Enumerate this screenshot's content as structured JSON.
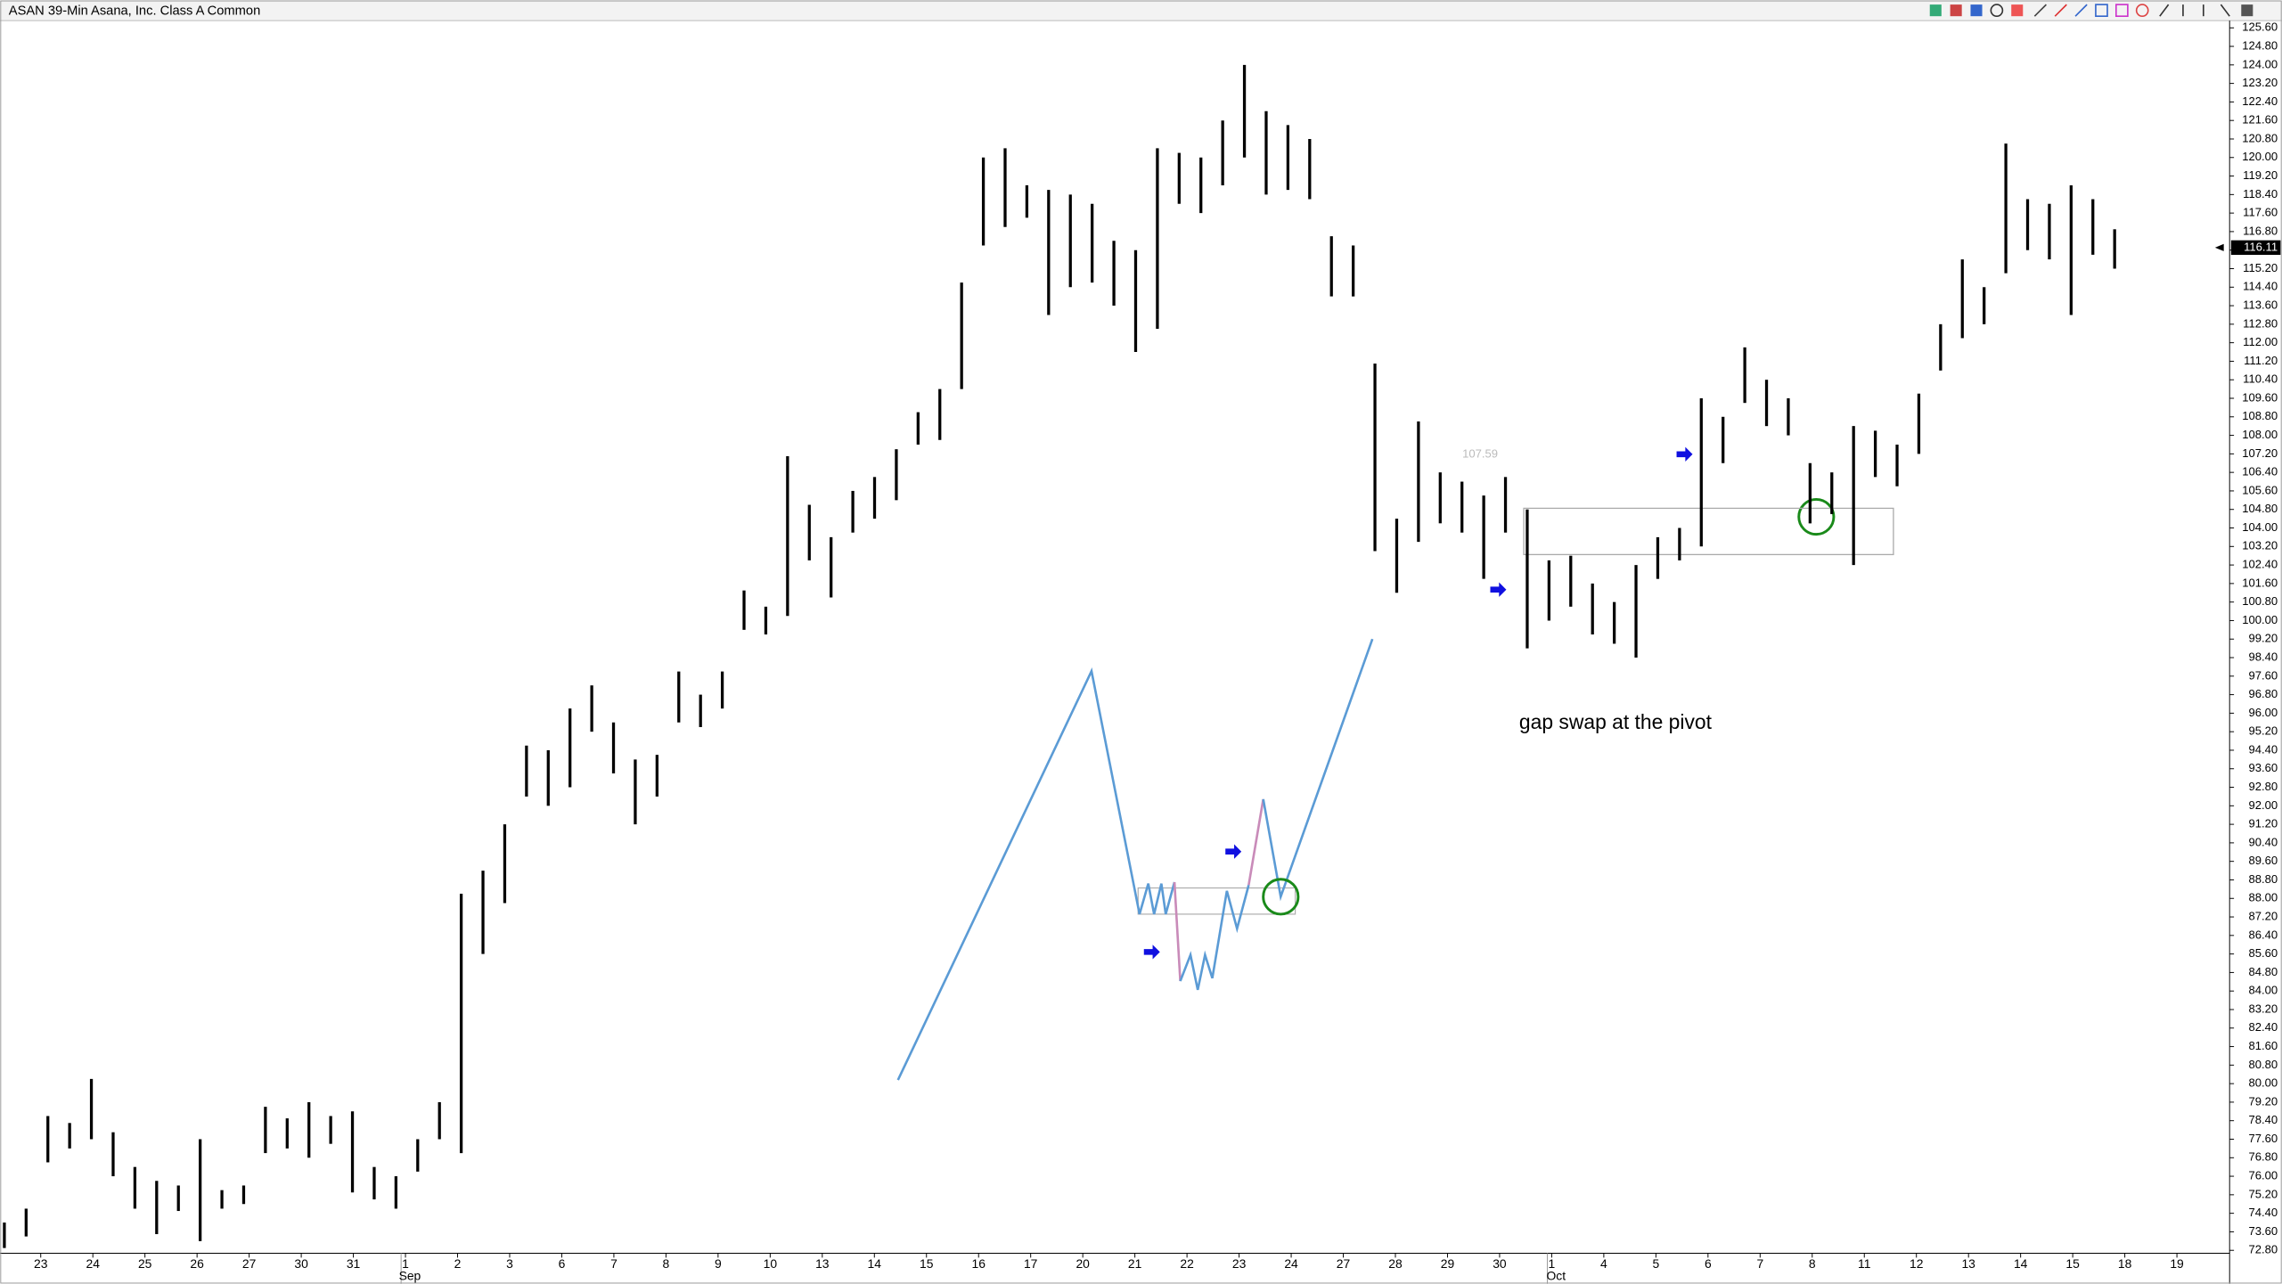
{
  "chart_data": {
    "type": "ohlc",
    "title": "ASAN 39-Min Asana, Inc. Class A Common",
    "annotations": [
      "gap swap at the pivot",
      "107.59"
    ],
    "categories": [
      "23",
      "24",
      "25",
      "26",
      "27",
      "30",
      "31",
      "1",
      "2",
      "3",
      "6",
      "7",
      "8",
      "9",
      "10",
      "13",
      "14",
      "15",
      "16",
      "17",
      "20",
      "21",
      "22",
      "23",
      "24",
      "27",
      "28",
      "29",
      "30",
      "1",
      "4",
      "5",
      "6",
      "7",
      "8",
      "11",
      "12",
      "13",
      "14",
      "15",
      "18",
      "19"
    ],
    "months": [
      null,
      null,
      null,
      null,
      null,
      null,
      null,
      "Sep",
      null,
      null,
      null,
      null,
      null,
      null,
      null,
      null,
      null,
      null,
      null,
      null,
      null,
      null,
      null,
      null,
      null,
      null,
      null,
      null,
      null,
      "Oct",
      null,
      null,
      null,
      null,
      null,
      null,
      null,
      null,
      null,
      null,
      null,
      null
    ],
    "high": [
      74.0,
      74.6,
      78.6,
      78.3,
      80.2,
      77.9,
      76.4,
      75.8,
      75.6,
      77.6,
      75.4,
      75.6,
      79.0,
      78.5,
      79.2,
      78.6,
      78.8,
      76.4,
      76.0,
      77.6,
      79.2,
      88.2,
      89.2,
      91.2,
      94.6,
      94.4,
      96.2,
      97.2,
      95.6,
      94.0,
      94.2,
      97.8,
      96.8,
      97.8,
      101.3,
      100.6,
      107.1,
      105.0,
      103.6,
      105.6,
      106.2,
      107.4,
      109.0,
      110.0,
      114.6,
      120.0,
      120.4,
      118.8,
      118.6,
      118.4,
      118.0,
      116.4,
      116.0,
      120.4,
      120.2,
      120.0,
      121.6,
      124.0,
      122.0,
      121.4,
      120.8,
      116.6,
      116.2,
      111.1,
      104.4,
      108.6,
      106.4,
      106.0,
      105.4,
      106.2,
      104.8,
      102.6,
      102.8,
      101.6,
      100.8,
      102.4,
      103.6,
      104.0,
      109.6,
      108.8,
      111.8,
      110.4,
      109.6,
      106.8,
      106.4,
      108.4,
      108.2,
      107.6,
      109.8,
      112.8,
      115.6,
      114.4,
      120.6,
      118.2,
      118.0,
      118.8,
      118.2,
      116.9
    ],
    "low": [
      72.9,
      73.4,
      76.6,
      77.2,
      77.6,
      76.0,
      74.6,
      73.5,
      74.5,
      73.2,
      74.6,
      74.8,
      77.0,
      77.2,
      76.8,
      77.4,
      75.3,
      75.0,
      74.6,
      76.2,
      77.6,
      77.0,
      85.6,
      87.8,
      92.4,
      92.0,
      92.8,
      95.2,
      93.4,
      91.2,
      92.4,
      95.6,
      95.4,
      96.2,
      99.6,
      99.4,
      100.2,
      102.6,
      101.0,
      103.8,
      104.4,
      105.2,
      107.6,
      107.8,
      110.0,
      116.2,
      117.0,
      117.4,
      113.2,
      114.4,
      114.6,
      113.6,
      111.6,
      112.6,
      118.0,
      117.6,
      118.8,
      120.0,
      118.4,
      118.6,
      118.2,
      114.0,
      114.0,
      103.0,
      101.2,
      103.4,
      104.2,
      103.8,
      101.8,
      103.8,
      98.8,
      100.0,
      100.6,
      99.4,
      99.0,
      98.4,
      101.8,
      102.6,
      103.2,
      106.8,
      109.4,
      108.4,
      108.0,
      104.2,
      104.6,
      102.4,
      106.2,
      105.8,
      107.2,
      110.8,
      112.2,
      112.8,
      115.0,
      116.0,
      115.6,
      113.2,
      115.8,
      115.2
    ],
    "color": "#000000",
    "last_price": 116.11,
    "zone": [
      102.85,
      104.85
    ],
    "ylim": [
      72.8,
      125.6
    ],
    "yticks": [
      {
        "value": 125.6,
        "label": "125.60"
      },
      {
        "value": 124.8,
        "label": "124.80"
      },
      {
        "value": 124,
        "label": "124.00"
      },
      {
        "value": 123.2,
        "label": "123.20"
      },
      {
        "value": 122.4,
        "label": "122.40"
      },
      {
        "value": 121.6,
        "label": "121.60"
      },
      {
        "value": 120.8,
        "label": "120.80"
      },
      {
        "value": 120,
        "label": "120.00"
      },
      {
        "value": 119.2,
        "label": "119.20"
      },
      {
        "value": 118.4,
        "label": "118.40"
      },
      {
        "value": 117.6,
        "label": "117.60"
      },
      {
        "value": 116.8,
        "label": "116.80"
      },
      {
        "value": 116,
        "label": "116.00"
      },
      {
        "value": 115.2,
        "label": "115.20"
      },
      {
        "value": 114.4,
        "label": "114.40"
      },
      {
        "value": 113.6,
        "label": "113.60"
      },
      {
        "value": 112.8,
        "label": "112.80"
      },
      {
        "value": 112,
        "label": "112.00"
      },
      {
        "value": 111.2,
        "label": "111.20"
      },
      {
        "value": 110.4,
        "label": "110.40"
      },
      {
        "value": 109.6,
        "label": "109.60"
      },
      {
        "value": 108.8,
        "label": "108.80"
      },
      {
        "value": 108,
        "label": "108.00"
      },
      {
        "value": 107.2,
        "label": "107.20"
      },
      {
        "value": 106.4,
        "label": "106.40"
      },
      {
        "value": 105.6,
        "label": "105.60"
      },
      {
        "value": 104.8,
        "label": "104.80"
      },
      {
        "value": 104,
        "label": "104.00"
      },
      {
        "value": 103.2,
        "label": "103.20"
      },
      {
        "value": 102.4,
        "label": "102.40"
      },
      {
        "value": 101.6,
        "label": "101.60"
      },
      {
        "value": 100.8,
        "label": "100.80"
      },
      {
        "value": 100,
        "label": "100.00"
      },
      {
        "value": 99.2,
        "label": "99.20"
      },
      {
        "value": 98.4,
        "label": "98.40"
      },
      {
        "value": 97.6,
        "label": "97.60"
      },
      {
        "value": 96.8,
        "label": "96.80"
      },
      {
        "value": 96,
        "label": "96.00"
      },
      {
        "value": 95.2,
        "label": "95.20"
      },
      {
        "value": 94.4,
        "label": "94.40"
      },
      {
        "value": 93.6,
        "label": "93.60"
      },
      {
        "value": 92.8,
        "label": "92.80"
      },
      {
        "value": 92,
        "label": "92.00"
      },
      {
        "value": 91.2,
        "label": "91.20"
      },
      {
        "value": 90.4,
        "label": "90.40"
      },
      {
        "value": 89.6,
        "label": "89.60"
      },
      {
        "value": 88.8,
        "label": "88.80"
      },
      {
        "value": 88,
        "label": "88.00"
      },
      {
        "value": 87.2,
        "label": "87.20"
      },
      {
        "value": 86.4,
        "label": "86.40"
      },
      {
        "value": 85.6,
        "label": "85.60"
      },
      {
        "value": 84.8,
        "label": "84.80"
      },
      {
        "value": 84,
        "label": "84.00"
      },
      {
        "value": 83.2,
        "label": "83.20"
      },
      {
        "value": 82.4,
        "label": "82.40"
      },
      {
        "value": 81.6,
        "label": "81.60"
      },
      {
        "value": 80.8,
        "label": "80.80"
      },
      {
        "value": 80,
        "label": "80.00"
      },
      {
        "value": 79.2,
        "label": "79.20"
      },
      {
        "value": 78.4,
        "label": "78.40"
      },
      {
        "value": 77.6,
        "label": "77.60"
      },
      {
        "value": 76.8,
        "label": "76.80"
      },
      {
        "value": 76,
        "label": "76.00"
      },
      {
        "value": 75.2,
        "label": "75.20"
      },
      {
        "value": 74.4,
        "label": "74.40"
      },
      {
        "value": 73.6,
        "label": "73.60"
      },
      {
        "value": 72.8,
        "label": "72.80"
      }
    ]
  }
}
